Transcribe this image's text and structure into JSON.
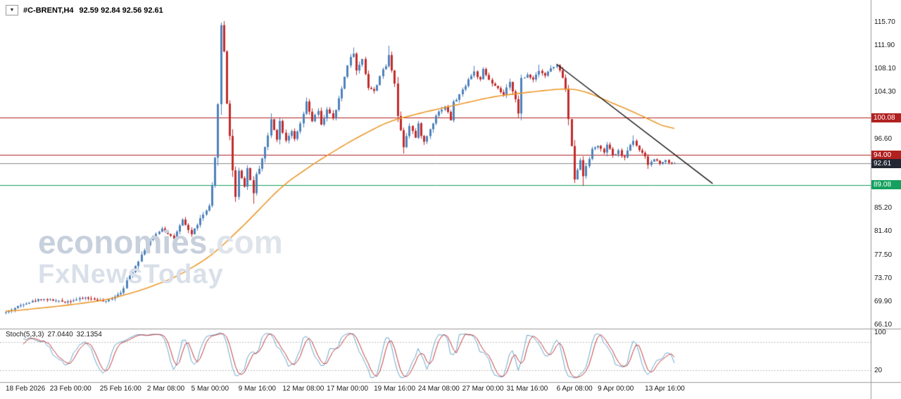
{
  "header": {
    "symbol": "#C-BRENT,H4",
    "ohlc": "92.59 92.84 92.56 92.61",
    "dropdown_icon": "▼"
  },
  "watermark": {
    "brand": "economies",
    "brand_suffix": ".com",
    "subbrand": "FxNewsToday"
  },
  "chart_data": {
    "type": "candlestick",
    "symbol": "#C-BRENT",
    "timeframe": "H4",
    "quote": {
      "open": "92.59",
      "high": "92.84",
      "low": "92.56",
      "close": "92.61"
    },
    "candles_n": 228,
    "y_ticks": [
      {
        "label": "115.70",
        "price": 115.7
      },
      {
        "label": "111.90",
        "price": 111.9
      },
      {
        "label": "108.10",
        "price": 108.1
      },
      {
        "label": "104.30",
        "price": 104.3
      },
      {
        "label": "96.60",
        "price": 96.6
      },
      {
        "label": "85.20",
        "price": 85.2
      },
      {
        "label": "81.40",
        "price": 81.4
      },
      {
        "label": "77.50",
        "price": 77.5
      },
      {
        "label": "73.70",
        "price": 73.7
      },
      {
        "label": "69.90",
        "price": 69.9
      },
      {
        "label": "66.10",
        "price": 66.1
      }
    ],
    "price_lines": [
      {
        "label": "100.08",
        "price": 100.08,
        "line_color": "#b22020",
        "badge_color": "#b22020",
        "role": "resistance"
      },
      {
        "label": "94.00",
        "price": 94.0,
        "line_color": "#b22020",
        "badge_color": "#b22020",
        "role": "resistance"
      },
      {
        "label": "92.61",
        "price": 92.61,
        "line_color": "#8a8a8a",
        "badge_color": "#222733",
        "role": "current-price"
      },
      {
        "label": "89.08",
        "price": 89.08,
        "line_color": "#14a05e",
        "badge_color": "#14a05e",
        "role": "support"
      }
    ],
    "x_labels": [
      {
        "label": "18 Feb 2026",
        "i": 0
      },
      {
        "label": "23 Feb 00:00",
        "i": 15
      },
      {
        "label": "25 Feb 16:00",
        "i": 32
      },
      {
        "label": "2 Mar 08:00",
        "i": 48
      },
      {
        "label": "5 Mar 00:00",
        "i": 63
      },
      {
        "label": "9 Mar 16:00",
        "i": 79
      },
      {
        "label": "12 Mar 08:00",
        "i": 94
      },
      {
        "label": "17 Mar 00:00",
        "i": 109
      },
      {
        "label": "19 Mar 16:00",
        "i": 125
      },
      {
        "label": "24 Mar 08:00",
        "i": 140
      },
      {
        "label": "27 Mar 00:00",
        "i": 155
      },
      {
        "label": "31 Mar 16:00",
        "i": 170
      },
      {
        "label": "6 Apr 08:00",
        "i": 187
      },
      {
        "label": "9 Apr 00:00",
        "i": 201
      },
      {
        "label": "13 Apr 16:00",
        "i": 217
      }
    ],
    "price_path": [
      [
        0,
        68.2
      ],
      [
        6,
        69.6
      ],
      [
        12,
        70.4
      ],
      [
        20,
        69.9
      ],
      [
        27,
        70.6
      ],
      [
        34,
        69.9
      ],
      [
        39,
        71.5
      ],
      [
        43,
        75.0
      ],
      [
        47,
        78.5
      ],
      [
        49,
        80.0
      ],
      [
        53,
        82.0
      ],
      [
        57,
        80.3
      ],
      [
        60,
        83.2
      ],
      [
        63,
        81.0
      ],
      [
        66,
        83.5
      ],
      [
        69,
        85.5
      ],
      [
        70,
        88.5
      ],
      [
        71,
        93.0
      ],
      [
        72,
        104.0
      ],
      [
        73,
        114.5
      ],
      [
        74,
        111.0
      ],
      [
        75,
        103.0
      ],
      [
        76,
        97.5
      ],
      [
        77,
        91.0
      ],
      [
        78,
        87.5
      ],
      [
        79,
        91.5
      ],
      [
        81,
        89.0
      ],
      [
        82,
        91.8
      ],
      [
        84,
        88.0
      ],
      [
        85,
        90.5
      ],
      [
        87,
        93.5
      ],
      [
        89,
        97.0
      ],
      [
        90,
        99.8
      ],
      [
        92,
        96.8
      ],
      [
        93,
        99.4
      ],
      [
        95,
        96.5
      ],
      [
        97,
        98.0
      ],
      [
        98,
        96.3
      ],
      [
        100,
        99.0
      ],
      [
        102,
        102.4
      ],
      [
        104,
        99.6
      ],
      [
        106,
        101.2
      ],
      [
        107,
        98.6
      ],
      [
        109,
        101.6
      ],
      [
        111,
        99.8
      ],
      [
        113,
        103.0
      ],
      [
        115,
        106.8
      ],
      [
        116,
        109.0
      ],
      [
        118,
        110.8
      ],
      [
        119,
        107.6
      ],
      [
        121,
        109.8
      ],
      [
        123,
        105.2
      ],
      [
        125,
        104.4
      ],
      [
        127,
        107.0
      ],
      [
        129,
        108.6
      ],
      [
        130,
        110.2
      ],
      [
        132,
        106.0
      ],
      [
        133,
        100.5
      ],
      [
        135,
        95.6
      ],
      [
        137,
        99.0
      ],
      [
        139,
        96.8
      ],
      [
        140,
        98.8
      ],
      [
        142,
        96.0
      ],
      [
        144,
        98.2
      ],
      [
        146,
        100.6
      ],
      [
        149,
        102.0
      ],
      [
        151,
        99.8
      ],
      [
        152,
        102.4
      ],
      [
        155,
        104.6
      ],
      [
        157,
        106.4
      ],
      [
        159,
        107.6
      ],
      [
        161,
        106.2
      ],
      [
        162,
        107.8
      ],
      [
        165,
        105.6
      ],
      [
        167,
        104.8
      ],
      [
        169,
        103.8
      ],
      [
        171,
        105.8
      ],
      [
        173,
        103.4
      ],
      [
        174,
        100.6
      ],
      [
        175,
        106.0
      ],
      [
        177,
        107.2
      ],
      [
        179,
        106.4
      ],
      [
        181,
        108.0
      ],
      [
        183,
        107.0
      ],
      [
        185,
        108.2
      ],
      [
        187,
        108.6
      ],
      [
        189,
        106.8
      ],
      [
        190,
        104.6
      ],
      [
        192,
        95.0
      ],
      [
        193,
        90.6
      ],
      [
        195,
        93.0
      ],
      [
        196,
        90.6
      ],
      [
        197,
        92.4
      ],
      [
        199,
        94.8
      ],
      [
        201,
        95.6
      ],
      [
        203,
        94.2
      ],
      [
        204,
        95.8
      ],
      [
        206,
        93.8
      ],
      [
        208,
        94.6
      ],
      [
        210,
        93.4
      ],
      [
        211,
        94.9
      ],
      [
        213,
        96.4
      ],
      [
        215,
        94.8
      ],
      [
        217,
        93.6
      ],
      [
        218,
        92.4
      ],
      [
        220,
        93.3
      ],
      [
        222,
        92.7
      ],
      [
        224,
        93.1
      ],
      [
        225,
        92.8
      ],
      [
        227,
        92.61
      ]
    ],
    "ma_path": [
      [
        0,
        68.3
      ],
      [
        20,
        69.3
      ],
      [
        34,
        70.2
      ],
      [
        46,
        71.8
      ],
      [
        58,
        74.0
      ],
      [
        70,
        77.5
      ],
      [
        82,
        83.0
      ],
      [
        94,
        89.0
      ],
      [
        106,
        93.0
      ],
      [
        118,
        96.5
      ],
      [
        130,
        99.5
      ],
      [
        142,
        101.0
      ],
      [
        154,
        102.3
      ],
      [
        166,
        103.6
      ],
      [
        178,
        104.3
      ],
      [
        190,
        104.9
      ],
      [
        196,
        104.6
      ],
      [
        204,
        102.9
      ],
      [
        210,
        101.7
      ],
      [
        216,
        100.4
      ],
      [
        222,
        99.0
      ],
      [
        227,
        97.9
      ]
    ],
    "wicks": [
      {
        "i": 73,
        "high": 115.7
      },
      {
        "i": 78,
        "low": 86.3
      },
      {
        "i": 84,
        "low": 86.0
      },
      {
        "i": 90,
        "high": 100.8
      },
      {
        "i": 102,
        "high": 103.4
      },
      {
        "i": 118,
        "high": 111.6
      },
      {
        "i": 130,
        "high": 111.9
      },
      {
        "i": 135,
        "low": 94.2
      },
      {
        "i": 159,
        "high": 108.6
      },
      {
        "i": 174,
        "low": 100.0
      },
      {
        "i": 181,
        "high": 108.8
      },
      {
        "i": 187,
        "high": 108.9
      },
      {
        "i": 193,
        "low": 89.4
      },
      {
        "i": 196,
        "low": 88.9
      },
      {
        "i": 213,
        "high": 97.2
      },
      {
        "i": 218,
        "low": 91.7
      },
      {
        "i": 227,
        "high": 92.84,
        "low": 92.56
      }
    ],
    "last_candle": {
      "open": 92.59,
      "close": 92.61
    },
    "trendline": {
      "i1": 187,
      "p1": 108.9,
      "i2": 240,
      "p2": 89.3,
      "color": "#111111"
    },
    "stoch": {
      "label": "Stoch(5,3,3)",
      "k_value": "27.0440",
      "d_value": "32.1354",
      "k_period": 5,
      "d_period": 3,
      "slowing": 3,
      "levels": [
        80,
        20
      ],
      "axis_labels": [
        {
          "label": "100",
          "value": 100
        },
        {
          "label": "20",
          "value": 20
        }
      ]
    },
    "colors": {
      "up": "#4f82bc",
      "down": "#c22b2b",
      "ma": "#ec9a2e",
      "trend": "#111111",
      "stoch_k": "#6aa8cf",
      "stoch_d": "#c23b3b",
      "separator": "#9a9a9a",
      "background": "#ffffff"
    }
  }
}
